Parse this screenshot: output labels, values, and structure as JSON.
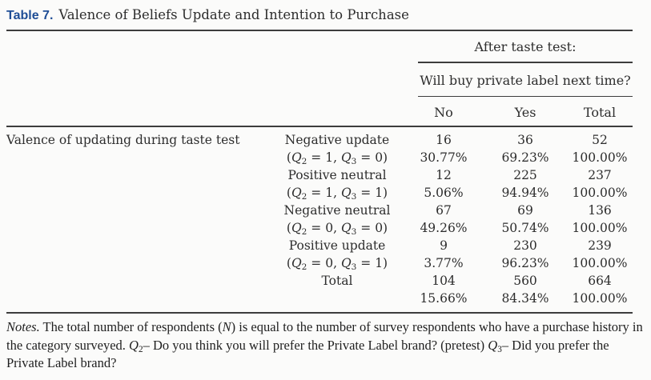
{
  "colors": {
    "title_accent": "#1f4e96",
    "text": "#2d2d2d",
    "rule": "#3d3d3d",
    "background": "#fbfbfa"
  },
  "title": {
    "label": "Table 7.",
    "text": "Valence of Beliefs Update and Intention to Purchase"
  },
  "header": {
    "group_label": "After taste test:",
    "question": "Will buy private label next time?",
    "columns": [
      "No",
      "Yes",
      "Total"
    ]
  },
  "stub_header": "Valence of updating during taste test",
  "rows": [
    {
      "label": "Negative update",
      "condition": "(Q₂ = 1, Q₃ = 0)",
      "no": "16",
      "yes": "36",
      "total": "52",
      "no_pct": "30.77%",
      "yes_pct": "69.23%",
      "total_pct": "100.00%"
    },
    {
      "label": "Positive neutral",
      "condition": "(Q₂ = 1, Q₃ = 1)",
      "no": "12",
      "yes": "225",
      "total": "237",
      "no_pct": "5.06%",
      "yes_pct": "94.94%",
      "total_pct": "100.00%"
    },
    {
      "label": "Negative neutral",
      "condition": "(Q₂ = 0, Q₃ = 0)",
      "no": "67",
      "yes": "69",
      "total": "136",
      "no_pct": "49.26%",
      "yes_pct": "50.74%",
      "total_pct": "100.00%"
    },
    {
      "label": "Positive update",
      "condition": "(Q₂ = 0, Q₃ = 1)",
      "no": "9",
      "yes": "230",
      "total": "239",
      "no_pct": "3.77%",
      "yes_pct": "96.23%",
      "total_pct": "100.00%"
    },
    {
      "label": "Total",
      "condition": "",
      "no": "104",
      "yes": "560",
      "total": "664",
      "no_pct": "15.66%",
      "yes_pct": "84.34%",
      "total_pct": "100.00%"
    }
  ],
  "notes": {
    "label": "Notes.",
    "text": "The total number of respondents (N) is equal to the number of survey respondents who have a purchase history in the category surveyed. Q₂– Do you think you will prefer the Private Label brand? (pretest) Q₃– Did you prefer the Private Label brand?"
  }
}
